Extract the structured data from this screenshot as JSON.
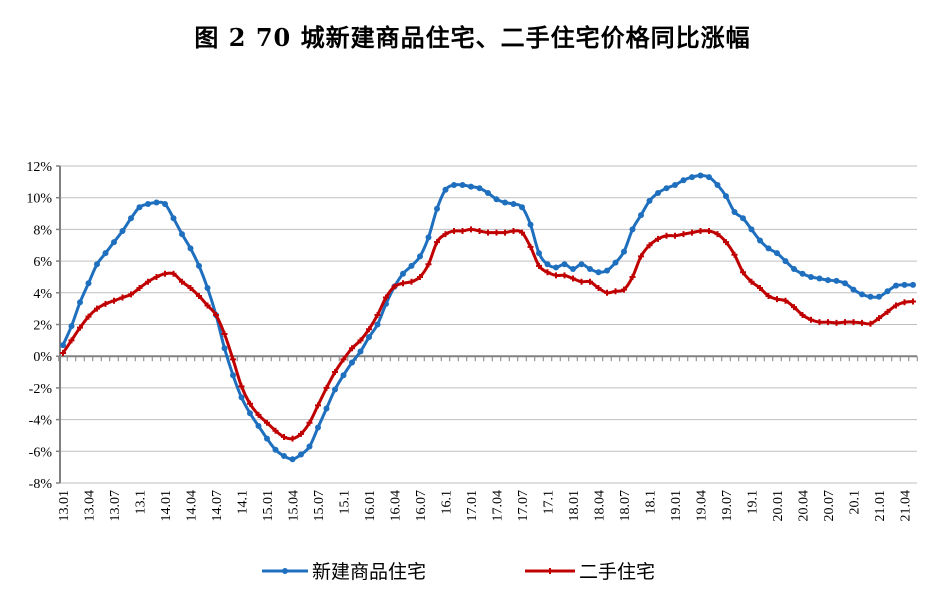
{
  "chart_data": {
    "type": "line",
    "title": "图 2   70 城新建商品住宅、二手住宅价格同比涨幅",
    "xlabel": "",
    "ylabel": "",
    "ylim": [
      -8,
      12
    ],
    "yticks": [
      "12%",
      "10%",
      "8%",
      "6%",
      "4%",
      "2%",
      "0%",
      "-2%",
      "-4%",
      "-6%",
      "-8%"
    ],
    "ytick_values": [
      12,
      10,
      8,
      6,
      4,
      2,
      0,
      -2,
      -4,
      -6,
      -8
    ],
    "xtick_labels": [
      "13.01",
      "13.04",
      "13.07",
      "13.1",
      "14.01",
      "14.04",
      "14.07",
      "14.1",
      "15.01",
      "15.04",
      "15.07",
      "15.1",
      "16.01",
      "16.04",
      "16.07",
      "16.1",
      "17.01",
      "17.04",
      "17.07",
      "17.1",
      "18.01",
      "18.04",
      "18.07",
      "18.1",
      "19.01",
      "19.04",
      "19.07",
      "19.1",
      "20.01",
      "20.04",
      "20.07",
      "20.1",
      "21.01",
      "21.04"
    ],
    "x_start": "2013.01",
    "x_end": "2021.05",
    "frequency": "monthly",
    "grid": true,
    "legend_position": "bottom",
    "series": [
      {
        "name": "新建商品住宅",
        "color": "#1f6fbf",
        "marker": "circle",
        "values": [
          0.7,
          1.9,
          3.4,
          4.6,
          5.8,
          6.5,
          7.2,
          7.9,
          8.7,
          9.4,
          9.6,
          9.7,
          9.6,
          8.7,
          7.7,
          6.8,
          5.7,
          4.3,
          2.6,
          0.5,
          -1.2,
          -2.6,
          -3.6,
          -4.4,
          -5.2,
          -5.9,
          -6.3,
          -6.5,
          -6.2,
          -5.7,
          -4.5,
          -3.3,
          -2.1,
          -1.2,
          -0.4,
          0.3,
          1.2,
          2.0,
          3.3,
          4.4,
          5.2,
          5.7,
          6.3,
          7.5,
          9.3,
          10.5,
          10.8,
          10.8,
          10.7,
          10.6,
          10.3,
          9.9,
          9.7,
          9.6,
          9.4,
          8.3,
          6.5,
          5.8,
          5.6,
          5.8,
          5.5,
          5.8,
          5.5,
          5.3,
          5.4,
          5.9,
          6.6,
          8.0,
          8.9,
          9.8,
          10.3,
          10.6,
          10.8,
          11.1,
          11.3,
          11.4,
          11.3,
          10.8,
          10.1,
          9.1,
          8.7,
          8.0,
          7.3,
          6.8,
          6.5,
          6.0,
          5.5,
          5.2,
          5.0,
          4.9,
          4.8,
          4.75,
          4.6,
          4.2,
          3.9,
          3.75,
          3.75,
          4.1,
          4.45,
          4.5,
          4.5
        ]
      },
      {
        "name": "二手住宅",
        "color": "#c00000",
        "marker": "cross",
        "values": [
          0.2,
          1.0,
          1.8,
          2.5,
          3.0,
          3.3,
          3.5,
          3.7,
          3.9,
          4.3,
          4.7,
          5.0,
          5.2,
          5.2,
          4.7,
          4.3,
          3.8,
          3.2,
          2.6,
          1.4,
          -0.2,
          -1.9,
          -3.0,
          -3.7,
          -4.2,
          -4.7,
          -5.1,
          -5.2,
          -4.9,
          -4.2,
          -3.1,
          -2.0,
          -1.0,
          -0.2,
          0.5,
          1.0,
          1.7,
          2.6,
          3.7,
          4.4,
          4.6,
          4.7,
          5.0,
          5.8,
          7.2,
          7.7,
          7.9,
          7.9,
          8.0,
          7.9,
          7.8,
          7.8,
          7.8,
          7.9,
          7.8,
          6.9,
          5.7,
          5.3,
          5.1,
          5.1,
          4.9,
          4.7,
          4.7,
          4.3,
          4.0,
          4.1,
          4.2,
          5.0,
          6.3,
          7.0,
          7.4,
          7.6,
          7.6,
          7.7,
          7.8,
          7.9,
          7.9,
          7.7,
          7.2,
          6.4,
          5.3,
          4.7,
          4.3,
          3.8,
          3.6,
          3.5,
          3.1,
          2.6,
          2.3,
          2.15,
          2.15,
          2.1,
          2.15,
          2.15,
          2.1,
          2.05,
          2.4,
          2.8,
          3.2,
          3.4,
          3.45
        ]
      }
    ]
  }
}
